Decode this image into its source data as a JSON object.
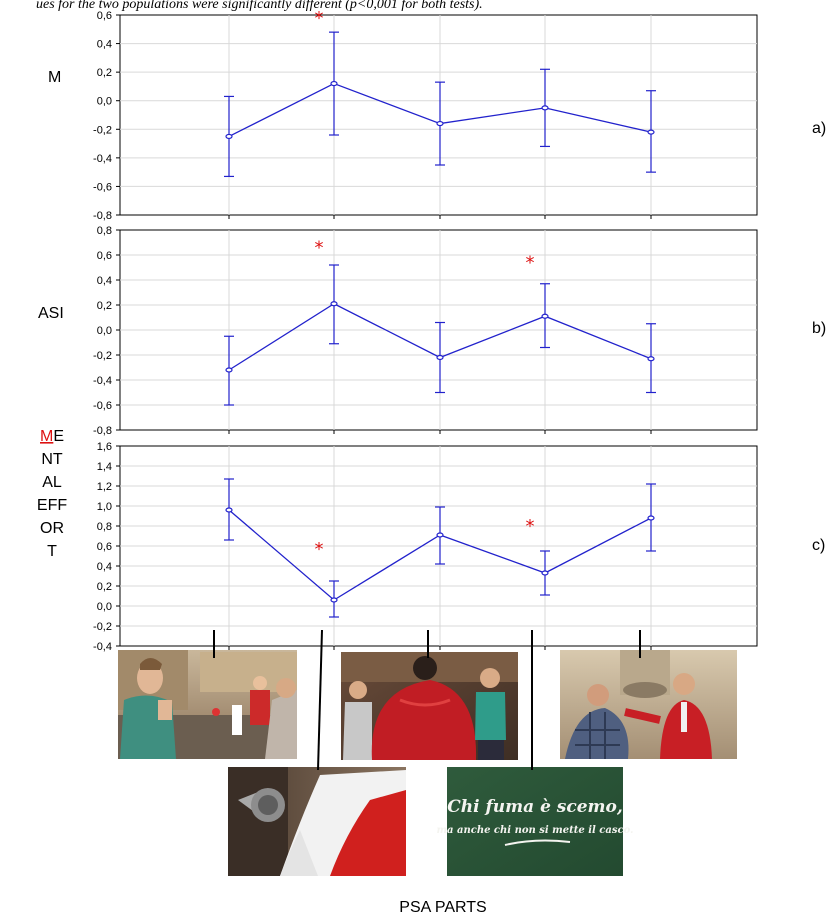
{
  "caption": "ues for the two populations were significantly different (p<0,001 for both tests).",
  "colors": {
    "series": "#2222cc",
    "significance": "#dd1111",
    "grid": "#d9d9d9",
    "axis": "#000000"
  },
  "chart_data": [
    {
      "type": "line",
      "panel_letter": "a)",
      "ylabel": "M",
      "ylim": [
        -0.8,
        0.6
      ],
      "yticks": [
        "-0,8",
        "-0,6",
        "-0,4",
        "-0,2",
        "0,0",
        "0,2",
        "0,4",
        "0,6"
      ],
      "x": [
        1,
        2,
        3,
        4,
        5
      ],
      "series": [
        {
          "values": [
            -0.25,
            0.12,
            -0.16,
            -0.05,
            -0.22
          ],
          "error_low": [
            -0.53,
            -0.24,
            -0.45,
            -0.32,
            -0.5
          ],
          "error_high": [
            0.03,
            0.48,
            0.13,
            0.22,
            0.07
          ]
        }
      ],
      "significance_markers": [
        {
          "x": 2,
          "y": 0.58,
          "label": "*"
        }
      ],
      "grid": true
    },
    {
      "type": "line",
      "panel_letter": "b)",
      "ylabel": "ASI",
      "ylim": [
        -0.8,
        0.8
      ],
      "yticks": [
        "-0,8",
        "-0,6",
        "-0,4",
        "-0,2",
        "0,0",
        "0,2",
        "0,4",
        "0,6",
        "0,8"
      ],
      "x": [
        1,
        2,
        3,
        4,
        5
      ],
      "series": [
        {
          "values": [
            -0.32,
            0.21,
            -0.22,
            0.11,
            -0.23
          ],
          "error_low": [
            -0.6,
            -0.11,
            -0.5,
            -0.14,
            -0.5
          ],
          "error_high": [
            -0.05,
            0.52,
            0.06,
            0.37,
            0.05
          ]
        }
      ],
      "significance_markers": [
        {
          "x": 2,
          "y": 0.66,
          "label": "*"
        },
        {
          "x": 4,
          "y": 0.54,
          "label": "*"
        }
      ],
      "grid": true
    },
    {
      "type": "line",
      "panel_letter": "c)",
      "ylabel_lines": [
        "ME",
        "NT",
        "AL",
        "EFF",
        "OR",
        "T"
      ],
      "ylim": [
        -0.4,
        1.6
      ],
      "yticks": [
        "-0,4",
        "-0,2",
        "0,0",
        "0,2",
        "0,4",
        "0,6",
        "0,8",
        "1,0",
        "1,2",
        "1,4",
        "1,6"
      ],
      "x": [
        1,
        2,
        3,
        4,
        5
      ],
      "series": [
        {
          "values": [
            0.96,
            0.06,
            0.71,
            0.33,
            0.88
          ],
          "error_low": [
            0.66,
            -0.11,
            0.42,
            0.11,
            0.55
          ],
          "error_high": [
            1.27,
            0.25,
            0.99,
            0.55,
            1.22
          ]
        }
      ],
      "significance_markers": [
        {
          "x": 2,
          "y": 0.57,
          "label": "*"
        },
        {
          "x": 4,
          "y": 0.8,
          "label": "*"
        }
      ],
      "grid": true
    }
  ],
  "x_axis_label": "PSA PARTS",
  "psa_images": [
    {
      "name": "scene-1",
      "description_icon": "street-scene-photo",
      "part": 1
    },
    {
      "name": "scene-2",
      "description_icon": "flag-megaphone-photo",
      "part": 2
    },
    {
      "name": "scene-3",
      "description_icon": "red-jacket-photo",
      "part": 3
    },
    {
      "name": "scene-4",
      "description_icon": "chalkboard-photo",
      "part": 4,
      "text_lines": [
        "Chi fuma è scemo,",
        "ma anche chi non si mette il casco."
      ]
    },
    {
      "name": "scene-5",
      "description_icon": "confrontation-photo",
      "part": 5
    }
  ]
}
